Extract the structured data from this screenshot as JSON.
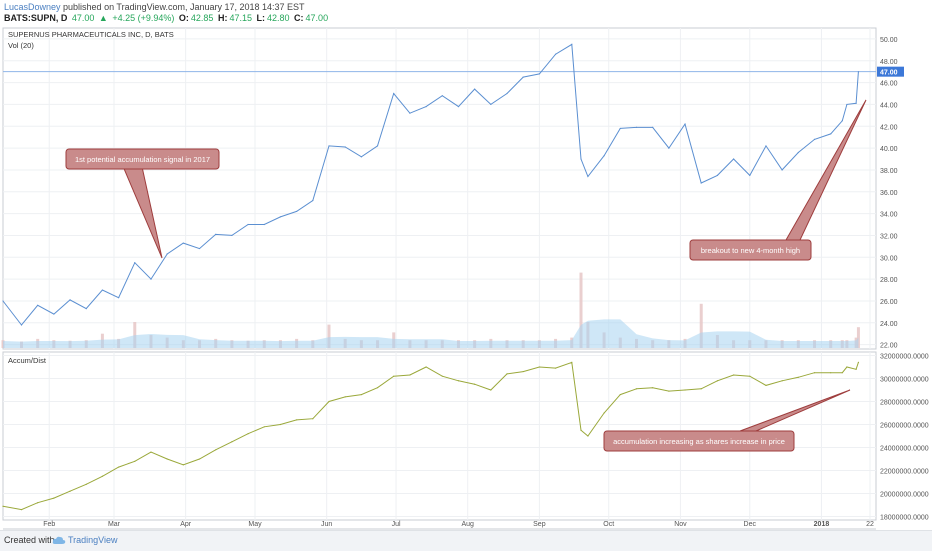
{
  "header": {
    "user": "LucasDowney",
    "published": " published on TradingView.com, January 17, 2018 14:37 EST",
    "symbol": "BATS:SUPN, D",
    "last": "47.00",
    "change": "+4.25 (+9.94%)",
    "o_label": "O:",
    "o_value": "42.85",
    "h_label": "H:",
    "h_value": "47.15",
    "l_label": "L:",
    "l_value": "42.80",
    "c_label": "C:",
    "c_value": "47.00"
  },
  "footer": {
    "created": "Created with",
    "brand": "TradingView"
  },
  "colors": {
    "price": "#5b8fd1",
    "ad": "#9aa83a",
    "grid": "#eef0f3",
    "callout": "#c98b8b",
    "callout_border": "#9e3d3d",
    "arrow": "#a3303c",
    "hline": "#8fb5e8",
    "vol_area": "#a8d4f0"
  },
  "chart_data": [
    {
      "type": "line",
      "title": "SUPERNUS PHARMACEUTICALS INC, D, BATS",
      "subtitle": "Vol (20)",
      "x": [
        "2017-01-12",
        "2017-01-20",
        "2017-01-27",
        "2017-02-03",
        "2017-02-10",
        "2017-02-17",
        "2017-02-24",
        "2017-03-03",
        "2017-03-10",
        "2017-03-17",
        "2017-03-24",
        "2017-03-31",
        "2017-04-07",
        "2017-04-14",
        "2017-04-21",
        "2017-04-28",
        "2017-05-05",
        "2017-05-12",
        "2017-05-19",
        "2017-05-26",
        "2017-06-02",
        "2017-06-09",
        "2017-06-16",
        "2017-06-23",
        "2017-06-30",
        "2017-07-07",
        "2017-07-14",
        "2017-07-21",
        "2017-07-28",
        "2017-08-04",
        "2017-08-11",
        "2017-08-18",
        "2017-08-25",
        "2017-09-01",
        "2017-09-08",
        "2017-09-15",
        "2017-09-19",
        "2017-09-22",
        "2017-09-29",
        "2017-10-06",
        "2017-10-13",
        "2017-10-20",
        "2017-10-27",
        "2017-11-03",
        "2017-11-10",
        "2017-11-17",
        "2017-11-24",
        "2017-12-01",
        "2017-12-08",
        "2017-12-15",
        "2017-12-22",
        "2017-12-29",
        "2018-01-05",
        "2018-01-10",
        "2018-01-12",
        "2018-01-16",
        "2018-01-17"
      ],
      "values": [
        26.0,
        23.8,
        25.6,
        24.8,
        26.1,
        25.3,
        27.0,
        26.3,
        29.5,
        28.0,
        30.3,
        31.3,
        30.8,
        32.1,
        32.0,
        33.0,
        33.0,
        33.7,
        34.2,
        35.2,
        40.2,
        40.1,
        39.2,
        40.2,
        45.0,
        43.2,
        43.8,
        44.8,
        43.8,
        45.4,
        44.0,
        45.0,
        46.5,
        46.8,
        48.6,
        49.5,
        39.0,
        37.4,
        39.3,
        41.8,
        41.9,
        41.9,
        40.0,
        42.2,
        36.8,
        37.5,
        39.0,
        37.5,
        40.2,
        38.0,
        39.6,
        40.8,
        41.3,
        42.5,
        44.0,
        44.1,
        47.0
      ],
      "ylim": [
        21.6,
        51.0
      ],
      "yticks": [
        "50.00",
        "48.00",
        "46.00",
        "44.00",
        "42.00",
        "40.00",
        "38.00",
        "36.00",
        "34.00",
        "32.00",
        "30.00",
        "28.00",
        "26.00",
        "24.00",
        "22.00"
      ],
      "last_label": "47.00",
      "volume": [
        0.3,
        0.25,
        0.35,
        0.3,
        0.28,
        0.3,
        0.55,
        0.35,
        1.0,
        0.5,
        0.4,
        0.3,
        0.3,
        0.35,
        0.3,
        0.28,
        0.3,
        0.3,
        0.35,
        0.3,
        0.9,
        0.35,
        0.3,
        0.3,
        0.6,
        0.3,
        0.3,
        0.3,
        0.3,
        0.3,
        0.35,
        0.3,
        0.3,
        0.3,
        0.35,
        0.4,
        2.9,
        1.0,
        0.6,
        0.4,
        0.35,
        0.3,
        0.3,
        0.35,
        1.7,
        0.5,
        0.3,
        0.3,
        0.3,
        0.3,
        0.3,
        0.3,
        0.3,
        0.3,
        0.3,
        0.4,
        0.8
      ],
      "annotations": [
        {
          "text": "1st potential accumulation signal in 2017"
        },
        {
          "text": "breakout to new 4-month high"
        }
      ]
    },
    {
      "type": "line",
      "title": "Accum/Dist",
      "x": [
        "2017-01-12",
        "2017-01-20",
        "2017-01-27",
        "2017-02-03",
        "2017-02-10",
        "2017-02-17",
        "2017-02-24",
        "2017-03-03",
        "2017-03-10",
        "2017-03-17",
        "2017-03-24",
        "2017-03-31",
        "2017-04-07",
        "2017-04-14",
        "2017-04-21",
        "2017-04-28",
        "2017-05-05",
        "2017-05-12",
        "2017-05-19",
        "2017-05-26",
        "2017-06-02",
        "2017-06-09",
        "2017-06-16",
        "2017-06-23",
        "2017-06-30",
        "2017-07-07",
        "2017-07-14",
        "2017-07-21",
        "2017-07-28",
        "2017-08-04",
        "2017-08-11",
        "2017-08-18",
        "2017-08-25",
        "2017-09-01",
        "2017-09-08",
        "2017-09-15",
        "2017-09-19",
        "2017-09-22",
        "2017-09-29",
        "2017-10-06",
        "2017-10-13",
        "2017-10-20",
        "2017-10-27",
        "2017-11-03",
        "2017-11-10",
        "2017-11-17",
        "2017-11-24",
        "2017-12-01",
        "2017-12-08",
        "2017-12-15",
        "2017-12-22",
        "2017-12-29",
        "2018-01-05",
        "2018-01-10",
        "2018-01-12",
        "2018-01-16",
        "2018-01-17"
      ],
      "values": [
        18900000,
        18600000,
        19200000,
        19600000,
        20200000,
        20800000,
        21500000,
        22300000,
        22800000,
        23600000,
        23000000,
        22500000,
        23000000,
        23800000,
        24500000,
        25200000,
        25800000,
        26000000,
        26400000,
        26500000,
        28000000,
        28400000,
        28600000,
        29200000,
        30200000,
        30300000,
        31000000,
        30200000,
        29800000,
        29500000,
        29000000,
        30400000,
        30600000,
        31000000,
        30900000,
        31400000,
        25500000,
        25000000,
        27000000,
        28600000,
        29100000,
        29200000,
        28900000,
        29000000,
        29100000,
        29800000,
        30300000,
        30200000,
        29400000,
        29800000,
        30100000,
        30500000,
        30500000,
        30500000,
        31000000,
        30800000,
        31400000
      ],
      "ylim": [
        17700000,
        32300000
      ],
      "yticks": [
        "32000000.0000",
        "30000000.0000",
        "28000000.0000",
        "26000000.0000",
        "24000000.0000",
        "22000000.0000",
        "20000000.0000",
        "18000000.0000"
      ],
      "annotations": [
        {
          "text": "accumulation increasing as shares increase in price"
        }
      ]
    }
  ],
  "x_ticks": [
    {
      "date": "2017-02-01",
      "label": "Feb"
    },
    {
      "date": "2017-03-01",
      "label": "Mar"
    },
    {
      "date": "2017-04-01",
      "label": "Apr"
    },
    {
      "date": "2017-05-01",
      "label": "May"
    },
    {
      "date": "2017-06-01",
      "label": "Jun"
    },
    {
      "date": "2017-07-01",
      "label": "Jul"
    },
    {
      "date": "2017-08-01",
      "label": "Aug"
    },
    {
      "date": "2017-09-01",
      "label": "Sep"
    },
    {
      "date": "2017-10-01",
      "label": "Oct"
    },
    {
      "date": "2017-11-01",
      "label": "Nov"
    },
    {
      "date": "2017-12-01",
      "label": "Dec"
    },
    {
      "date": "2018-01-01",
      "label": "2018"
    },
    {
      "date": "2018-01-22",
      "label": "22"
    }
  ]
}
